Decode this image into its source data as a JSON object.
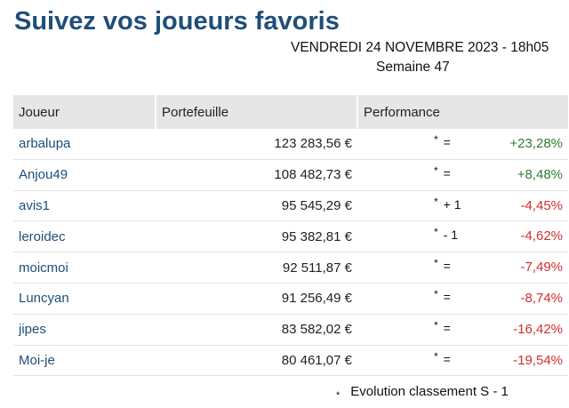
{
  "page": {
    "title": "Suivez vos joueurs favoris",
    "date": "VENDREDI 24 NOVEMBRE 2023 - 18h05",
    "week": "Semaine 47"
  },
  "table": {
    "headers": {
      "player": "Joueur",
      "portfolio": "Portefeuille",
      "performance": "Performance"
    },
    "rows": [
      {
        "player": "arbalupa",
        "portfolio": "123 283,56 €",
        "star": "*",
        "evolution": "=",
        "performance": "+23,28%",
        "trend": "positive"
      },
      {
        "player": "Anjou49",
        "portfolio": "108 482,73 €",
        "star": "*",
        "evolution": "=",
        "performance": "+8,48%",
        "trend": "positive"
      },
      {
        "player": "avis1",
        "portfolio": "95 545,29 €",
        "star": "*",
        "evolution": "+ 1",
        "performance": "-4,45%",
        "trend": "negative"
      },
      {
        "player": "leroidec",
        "portfolio": "95 382,81 €",
        "star": "*",
        "evolution": "- 1",
        "performance": "-4,62%",
        "trend": "negative"
      },
      {
        "player": "moicmoi",
        "portfolio": "92 511,87 €",
        "star": "*",
        "evolution": "=",
        "performance": "-7,49%",
        "trend": "negative"
      },
      {
        "player": "Luncyan",
        "portfolio": "91 256,49 €",
        "star": "*",
        "evolution": "=",
        "performance": "-8,74%",
        "trend": "negative"
      },
      {
        "player": "jipes",
        "portfolio": "83 582,02 €",
        "star": "*",
        "evolution": "=",
        "performance": "-16,42%",
        "trend": "negative"
      },
      {
        "player": "Moi-je",
        "portfolio": "80 461,07 €",
        "star": "*",
        "evolution": "=",
        "performance": "-19,54%",
        "trend": "negative"
      }
    ]
  },
  "footnote": {
    "star": "*",
    "text": "Evolution classement S - 1"
  },
  "colors": {
    "title": "#1f4e79",
    "player_link": "#1f4e79",
    "positive": "#2e7d32",
    "negative": "#d32f2f",
    "header_bg": "#e6e6e6"
  }
}
